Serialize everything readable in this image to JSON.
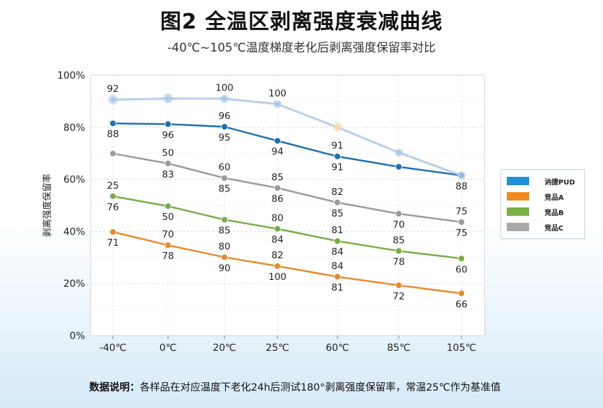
{
  "title": "图2 全温区剥离强度衰减曲线",
  "subtitle": "-40℃~105℃温度梯度老化后剥离强度保留率对比",
  "note": {
    "label": "数据说明：",
    "text": "各样品在对应温度下老化24h后测试180°剥离强度保留率，常温25℃作为基准值"
  },
  "chart_data": {
    "type": "line",
    "categories": [
      "-40℃",
      "0℃",
      "20℃",
      "25℃",
      "60℃",
      "85℃",
      "105℃"
    ],
    "ylabel": "剥离强度保留率",
    "ylim": [
      0,
      100
    ],
    "yticks": [
      "0%",
      "20%",
      "40%",
      "60%",
      "80%",
      "100%"
    ],
    "grid": true,
    "legend_position": "right",
    "series": [
      {
        "name": "汭捷PUD",
        "color": "#1f6fae",
        "legend_color": "#1f8fd6",
        "values": [
          81.5,
          81.2,
          80.2,
          74.8,
          68.8,
          64.8,
          61.5
        ],
        "labels": [
          "88",
          "96",
          "95",
          "94",
          "91",
          "",
          "88"
        ],
        "extra_labels": [
          "",
          "",
          "96",
          "",
          "91",
          "",
          ""
        ]
      },
      {
        "name": "",
        "color": "#a9c8e6",
        "ghost": true,
        "values": [
          90.6,
          91.0,
          91.0,
          88.9,
          80.0,
          70.3,
          61.5
        ],
        "labels": [
          "92",
          "",
          "100",
          "100",
          "",
          "",
          ""
        ]
      },
      {
        "name": "竞品A",
        "color": "#e8892a",
        "legend_color": "#f08a1c",
        "values": [
          39.8,
          34.7,
          30.1,
          26.7,
          22.6,
          19.3,
          16.2
        ],
        "labels": [
          "71",
          "78",
          "90",
          "100",
          "81",
          "72",
          "66"
        ],
        "extra_labels": [
          "",
          "70",
          "80",
          "82",
          "84",
          "",
          ""
        ]
      },
      {
        "name": "竞品B",
        "color": "#76ad48",
        "legend_color": "#78b044",
        "values": [
          53.5,
          49.7,
          44.5,
          41.0,
          36.3,
          32.5,
          29.6
        ],
        "labels": [
          "76",
          "50",
          "85",
          "84",
          "84",
          "78",
          "60"
        ],
        "extra_labels": [
          "25",
          "",
          "",
          "80",
          "81",
          "85",
          ""
        ]
      },
      {
        "name": "竞品C",
        "color": "#9a9a9a",
        "legend_color": "#a8a8a8",
        "values": [
          69.9,
          66.1,
          60.5,
          56.7,
          51.1,
          46.8,
          43.6
        ],
        "labels": [
          "",
          "83",
          "85",
          "86",
          "85",
          "70",
          "75"
        ],
        "extra_labels": [
          "",
          "50",
          "60",
          "85",
          "82",
          "",
          "75"
        ]
      }
    ]
  }
}
